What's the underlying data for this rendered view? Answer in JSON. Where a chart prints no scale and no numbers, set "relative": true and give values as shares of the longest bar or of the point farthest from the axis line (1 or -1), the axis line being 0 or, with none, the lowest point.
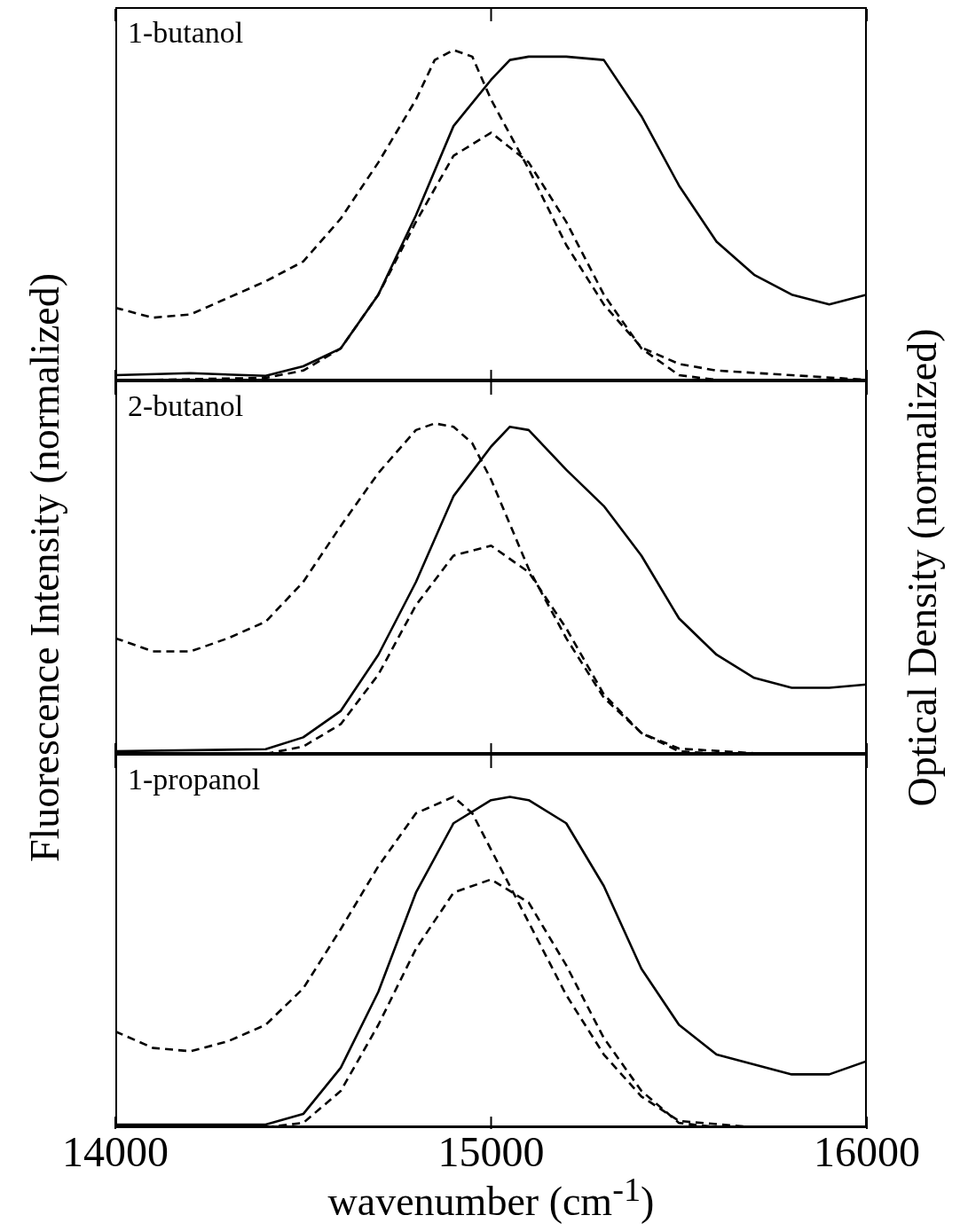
{
  "chart_data": [
    {
      "type": "line",
      "title": "1-butanol",
      "relative": true,
      "xlim": [
        14000,
        16000
      ],
      "xticks": [
        14000,
        15000,
        16000
      ],
      "tick_labels": false,
      "series": [
        {
          "color": "#000000",
          "line_style": "dashed",
          "x": [
            14000,
            14100,
            14200,
            14300,
            14400,
            14500,
            14600,
            14700,
            14800,
            14850,
            14900,
            14950,
            15000,
            15100,
            15200,
            15300,
            15400,
            15500,
            15600,
            15800,
            16000
          ],
          "values": [
            0.22,
            0.19,
            0.2,
            0.25,
            0.3,
            0.36,
            0.49,
            0.66,
            0.85,
            0.97,
            1,
            0.98,
            0.85,
            0.64,
            0.41,
            0.23,
            0.1,
            0.05,
            0.03,
            0.016,
            0.002
          ]
        },
        {
          "color": "#000000",
          "line_style": "solid",
          "x": [
            14000,
            14200,
            14400,
            14500,
            14600,
            14700,
            14800,
            14900,
            15000,
            15050,
            15100,
            15200,
            15300,
            15400,
            15500,
            15600,
            15700,
            15800,
            15900,
            16000
          ],
          "values": [
            0.016,
            0.022,
            0.014,
            0.043,
            0.097,
            0.26,
            0.5,
            0.77,
            0.91,
            0.97,
            0.98,
            0.98,
            0.97,
            0.8,
            0.59,
            0.42,
            0.32,
            0.26,
            0.23,
            0.26
          ]
        },
        {
          "color": "#000000",
          "line_style": "dashed",
          "x": [
            14000,
            14400,
            14500,
            14600,
            14700,
            14800,
            14900,
            15000,
            15100,
            15200,
            15300,
            15400,
            15500,
            15600
          ],
          "values": [
            0,
            0.008,
            0.03,
            0.097,
            0.26,
            0.48,
            0.68,
            0.75,
            0.66,
            0.48,
            0.26,
            0.097,
            0.016,
            0.002
          ]
        }
      ]
    },
    {
      "type": "line",
      "title": "2-butanol",
      "ylabel": "Fluorescence Intensity (normalized)",
      "y2label": "Optical Density (normalized)",
      "relative": true,
      "xlim": [
        14000,
        16000
      ],
      "xticks": [
        14000,
        15000,
        16000
      ],
      "tick_labels": false,
      "series": [
        {
          "color": "#000000",
          "line_style": "dashed",
          "x": [
            14000,
            14100,
            14200,
            14300,
            14400,
            14500,
            14600,
            14700,
            14800,
            14850,
            14900,
            14950,
            15000,
            15100,
            15200,
            15300,
            15400,
            15500,
            15700,
            16000
          ],
          "values": [
            0.35,
            0.31,
            0.31,
            0.35,
            0.4,
            0.52,
            0.69,
            0.85,
            0.98,
            1,
            0.99,
            0.94,
            0.83,
            0.56,
            0.35,
            0.17,
            0.063,
            0.016,
            0.002,
            0
          ]
        },
        {
          "color": "#000000",
          "line_style": "solid",
          "x": [
            14000,
            14400,
            14500,
            14600,
            14700,
            14800,
            14900,
            15000,
            15050,
            15100,
            15200,
            15300,
            15400,
            15500,
            15600,
            15700,
            15800,
            15900,
            16000
          ],
          "values": [
            0.008,
            0.014,
            0.05,
            0.13,
            0.3,
            0.52,
            0.78,
            0.93,
            0.99,
            0.98,
            0.86,
            0.75,
            0.6,
            0.41,
            0.3,
            0.23,
            0.2,
            0.2,
            0.21
          ]
        },
        {
          "color": "#000000",
          "line_style": "dashed",
          "x": [
            14400,
            14500,
            14600,
            14700,
            14800,
            14900,
            15000,
            15100,
            15200,
            15300,
            15400,
            15500,
            15600
          ],
          "values": [
            0,
            0.022,
            0.09,
            0.24,
            0.45,
            0.6,
            0.63,
            0.55,
            0.38,
            0.18,
            0.063,
            0.008,
            0
          ]
        }
      ]
    },
    {
      "type": "line",
      "title": "1-propanol",
      "xlabel": "wavenumber (cm$^{-1}$)",
      "relative": true,
      "xlim": [
        14000,
        16000
      ],
      "xticks": [
        14000,
        15000,
        16000
      ],
      "series": [
        {
          "color": "#000000",
          "line_style": "dashed",
          "x": [
            14000,
            14100,
            14200,
            14300,
            14400,
            14500,
            14600,
            14700,
            14800,
            14900,
            14950,
            15000,
            15100,
            15200,
            15300,
            15400,
            15500,
            15700,
            16000
          ],
          "values": [
            0.29,
            0.24,
            0.23,
            0.26,
            0.31,
            0.42,
            0.6,
            0.79,
            0.95,
            1,
            0.95,
            0.84,
            0.62,
            0.4,
            0.22,
            0.093,
            0.019,
            0,
            0
          ]
        },
        {
          "color": "#000000",
          "line_style": "solid",
          "x": [
            14000,
            14400,
            14500,
            14600,
            14700,
            14800,
            14900,
            15000,
            15050,
            15100,
            15200,
            15300,
            15400,
            15500,
            15600,
            15700,
            15800,
            15900,
            16000
          ],
          "values": [
            0.008,
            0.008,
            0.04,
            0.18,
            0.41,
            0.71,
            0.92,
            0.99,
            1,
            0.99,
            0.92,
            0.73,
            0.48,
            0.31,
            0.22,
            0.19,
            0.16,
            0.16,
            0.2
          ]
        },
        {
          "color": "#000000",
          "line_style": "dashed",
          "x": [
            14400,
            14500,
            14600,
            14700,
            14800,
            14900,
            15000,
            15100,
            15200,
            15300,
            15400,
            15500,
            15600
          ],
          "values": [
            0,
            0.013,
            0.11,
            0.31,
            0.54,
            0.71,
            0.75,
            0.68,
            0.49,
            0.27,
            0.11,
            0.013,
            0
          ]
        }
      ]
    }
  ]
}
